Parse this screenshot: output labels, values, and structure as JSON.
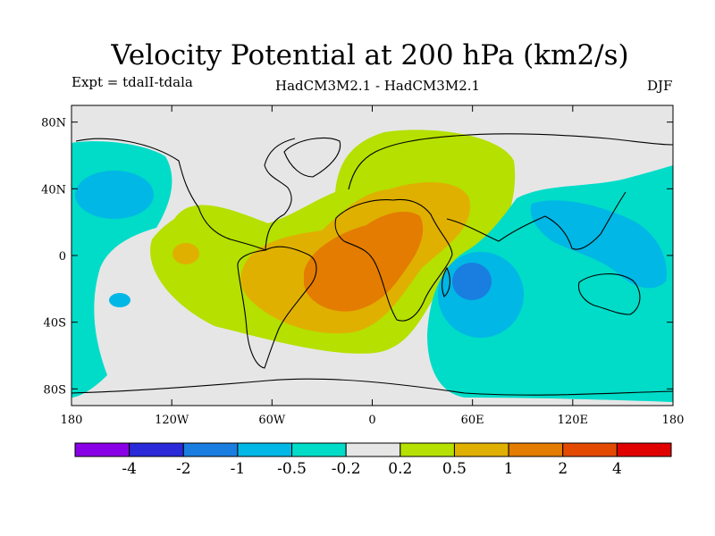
{
  "chart_data": {
    "type": "heatmap",
    "title": "Velocity Potential at 200 hPa (km2/s)",
    "left_label": "Expt = tdalI-tdala",
    "center_label": "HadCM3M2.1 - HadCM3M2.1",
    "right_label": "DJF",
    "x_axis": {
      "range": [
        -180,
        180
      ],
      "ticks": [
        {
          "value": -180,
          "label": "180"
        },
        {
          "value": -120,
          "label": "120W"
        },
        {
          "value": -60,
          "label": "60W"
        },
        {
          "value": 0,
          "label": "0"
        },
        {
          "value": 60,
          "label": "60E"
        },
        {
          "value": 120,
          "label": "120E"
        },
        {
          "value": 180,
          "label": "180"
        }
      ]
    },
    "y_axis": {
      "range": [
        -90,
        90
      ],
      "ticks": [
        {
          "value": 80,
          "label": "80N"
        },
        {
          "value": 40,
          "label": "40N"
        },
        {
          "value": 0,
          "label": "0"
        },
        {
          "value": -40,
          "label": "40S"
        },
        {
          "value": -80,
          "label": "80S"
        }
      ]
    },
    "colorbar": {
      "colors": [
        "#8a00e6",
        "#2a2ad8",
        "#1a7ee0",
        "#00b7e5",
        "#00dcc8",
        "#e6e6e6",
        "#b5e000",
        "#e0b000",
        "#e37c00",
        "#e34a00",
        "#e00000"
      ],
      "boundaries": [
        "-4",
        "-2",
        "-1",
        "-0.5",
        "-0.2",
        "0.2",
        "0.5",
        "1",
        "2",
        "4"
      ]
    },
    "regions": [
      {
        "name": "africa-positive-max",
        "lon": 15,
        "lat": -10,
        "level": 2
      },
      {
        "name": "middle-east-positive",
        "lon": 45,
        "lat": 38,
        "level": 1
      },
      {
        "name": "east-pacific-positive",
        "lon": -112,
        "lat": 0,
        "level": 1
      },
      {
        "name": "indian-ocean-negative",
        "lon": 60,
        "lat": -20,
        "level": -1
      },
      {
        "name": "maritime-continent-negative",
        "lon": 130,
        "lat": 5,
        "level": -0.5
      },
      {
        "name": "north-pacific-negative",
        "lon": -160,
        "lat": 40,
        "level": -0.5
      }
    ]
  }
}
